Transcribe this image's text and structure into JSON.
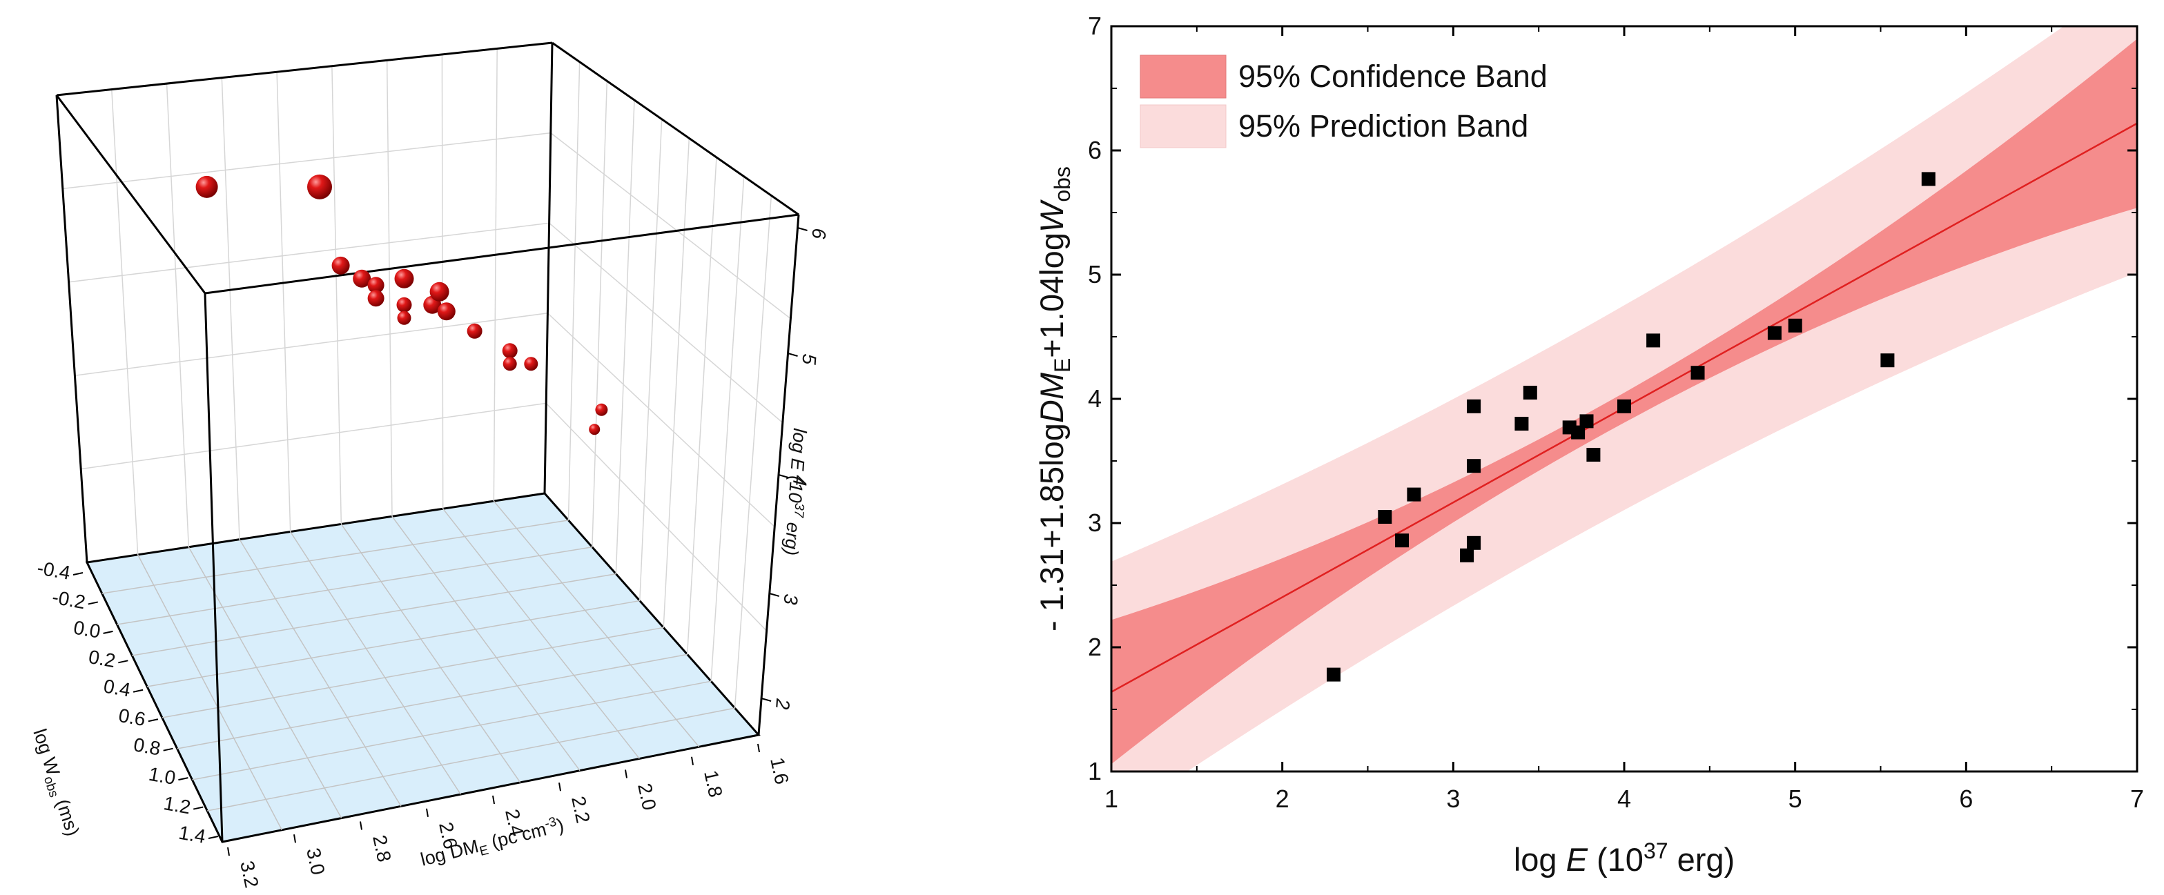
{
  "chart_data": [
    {
      "type": "scatter3d",
      "axes": {
        "x": {
          "label_main": "log DM",
          "label_sub": "E",
          "label_tail": " (pc cm",
          "label_sup": "-3",
          "label_end": ")",
          "ticks": [
            "3.2",
            "3.0",
            "2.8",
            "2.6",
            "2.4",
            "2.2",
            "2.0",
            "1.8",
            "1.6"
          ],
          "range": [
            3.2,
            1.6
          ]
        },
        "y": {
          "label_main": "log W",
          "label_sub": "obs",
          "label_tail": " (ms)",
          "ticks": [
            "-0.4",
            "-0.2",
            "0.0",
            "0.2",
            "0.4",
            "0.6",
            "0.8",
            "1.0",
            "1.2",
            "1.4"
          ],
          "range": [
            -0.4,
            1.4
          ]
        },
        "z": {
          "label_main": "log E (10",
          "label_sup": "37",
          "label_tail": " erg)",
          "ticks": [
            "2",
            "3",
            "4",
            "5",
            "6"
          ],
          "range": [
            1.5,
            6
          ]
        }
      },
      "points": [
        {
          "u": 0.12,
          "v": 0.78,
          "r": 16
        },
        {
          "u": 0.28,
          "v": 0.78,
          "r": 18
        },
        {
          "u": 0.31,
          "v": 0.66,
          "r": 13
        },
        {
          "u": 0.34,
          "v": 0.64,
          "r": 13
        },
        {
          "u": 0.36,
          "v": 0.63,
          "r": 12
        },
        {
          "u": 0.36,
          "v": 0.61,
          "r": 12
        },
        {
          "u": 0.4,
          "v": 0.64,
          "r": 14
        },
        {
          "u": 0.4,
          "v": 0.6,
          "r": 11
        },
        {
          "u": 0.4,
          "v": 0.58,
          "r": 10
        },
        {
          "u": 0.44,
          "v": 0.6,
          "r": 13
        },
        {
          "u": 0.45,
          "v": 0.62,
          "r": 14
        },
        {
          "u": 0.46,
          "v": 0.59,
          "r": 13
        },
        {
          "u": 0.5,
          "v": 0.56,
          "r": 11
        },
        {
          "u": 0.55,
          "v": 0.53,
          "r": 11
        },
        {
          "u": 0.55,
          "v": 0.51,
          "r": 10
        },
        {
          "u": 0.58,
          "v": 0.51,
          "r": 10
        },
        {
          "u": 0.68,
          "v": 0.44,
          "r": 9
        },
        {
          "u": 0.67,
          "v": 0.41,
          "r": 8
        }
      ]
    },
    {
      "type": "scatter",
      "xlabel_main": "log ",
      "xlabel_it": "E",
      "xlabel_tail": " (10",
      "xlabel_sup": "37",
      "xlabel_end": " erg)",
      "ylabel_parts": [
        "- 1.31+1.85log",
        "DM",
        "E",
        "+1.04log",
        "W",
        "obs"
      ],
      "xlim": [
        1,
        7
      ],
      "ylim": [
        1,
        7
      ],
      "xticks": [
        1,
        2,
        3,
        4,
        5,
        6,
        7
      ],
      "yticks": [
        1,
        2,
        3,
        4,
        5,
        6,
        7
      ],
      "legend": {
        "placement": "top-left",
        "entries": [
          {
            "label": "95% Confidence Band",
            "color": "#f58c8c"
          },
          {
            "label": "95% Prediction Band",
            "color": "#fbdcdc"
          }
        ]
      },
      "fit": {
        "intercept": 0.877,
        "slope": 0.763,
        "color": "#e02020"
      },
      "confidence_band": {
        "color": "#f58c8c",
        "x": [
          1,
          3.75,
          7
        ],
        "half_width": [
          0.58,
          0.12,
          0.68
        ]
      },
      "prediction_band": {
        "color": "#fbdcdc",
        "x": [
          1,
          3.75,
          7
        ],
        "half_width": [
          1.05,
          0.82,
          1.2
        ]
      },
      "points": [
        [
          2.3,
          1.78
        ],
        [
          2.6,
          3.05
        ],
        [
          2.7,
          2.86
        ],
        [
          2.77,
          3.23
        ],
        [
          3.08,
          2.74
        ],
        [
          3.12,
          2.84
        ],
        [
          3.12,
          3.46
        ],
        [
          3.12,
          3.94
        ],
        [
          3.4,
          3.8
        ],
        [
          3.45,
          4.05
        ],
        [
          3.68,
          3.77
        ],
        [
          3.73,
          3.73
        ],
        [
          3.78,
          3.82
        ],
        [
          3.82,
          3.55
        ],
        [
          4.0,
          3.94
        ],
        [
          4.17,
          4.47
        ],
        [
          4.43,
          4.21
        ],
        [
          4.88,
          4.53
        ],
        [
          5.0,
          4.59
        ],
        [
          5.54,
          4.31
        ],
        [
          5.78,
          5.77
        ]
      ],
      "marker_color": "#000000"
    }
  ]
}
